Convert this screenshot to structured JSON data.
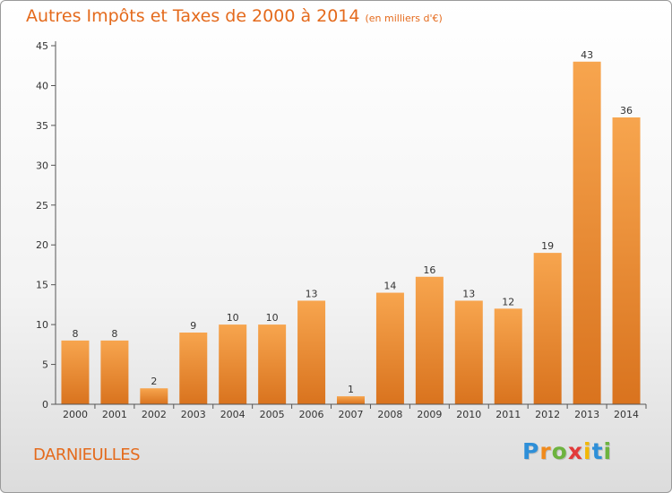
{
  "title": "Autres Impôts et Taxes de 2000 à 2014",
  "subtitle": "(en milliers d'€)",
  "location": "DARNIEULLES",
  "logo": {
    "letters": [
      "P",
      "r",
      "o",
      "x",
      "i",
      "t",
      "i"
    ],
    "colors": [
      "#2e8fd8",
      "#f08a1c",
      "#6db33f",
      "#e23a3a",
      "#f2b705",
      "#2e8fd8",
      "#6db33f"
    ]
  },
  "colors": {
    "bar_light": "#f7a54e",
    "bar_dark": "#d9731e",
    "title": "#e46a1c"
  },
  "chart_data": {
    "type": "bar",
    "categories": [
      "2000",
      "2001",
      "2002",
      "2003",
      "2004",
      "2005",
      "2006",
      "2007",
      "2008",
      "2009",
      "2010",
      "2011",
      "2012",
      "2013",
      "2014"
    ],
    "values": [
      8,
      8,
      2,
      9,
      10,
      10,
      13,
      1,
      14,
      16,
      13,
      12,
      19,
      43,
      36
    ],
    "data_labels": [
      "8",
      "8",
      "2",
      "9",
      "10",
      "10",
      "13",
      "1",
      "14",
      "16",
      "13",
      "12",
      "19",
      "43",
      "36"
    ],
    "y_ticks": [
      "0",
      "5",
      "10",
      "15",
      "20",
      "25",
      "30",
      "35",
      "40",
      "45"
    ],
    "ylim": [
      0,
      45
    ],
    "grid": false,
    "legend": "none"
  }
}
